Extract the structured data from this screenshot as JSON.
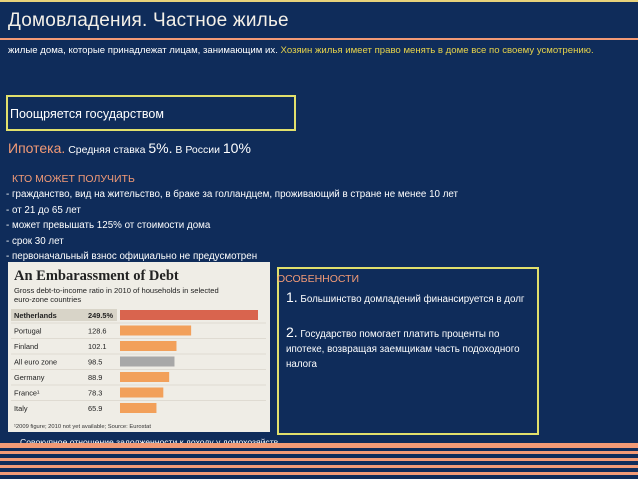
{
  "slide": {
    "title": "Домовладения. Частное жилье",
    "intro_text": "жилые дома, которые принадлежат лицам, занимающим их. ",
    "intro_highlight": "Хозяин жилья имеет право менять в доме все по своему усмотрению.",
    "promo_box": "Поощряется государством",
    "mortgage": {
      "label": "Ипотека.",
      "text1": " Средняя ставка ",
      "rate": "5%.",
      "text2": " В России ",
      "rate_ru": "10%"
    },
    "who_title": "КТО МОЖЕТ ПОЛУЧИТЬ",
    "who_items": [
      " - гражданство,  вид на жительство, в браке за голландцем, проживающий в стране не менее 10 лет",
      "- от 21 до 65 лет",
      "- может превышать 125% от стоимости дома",
      "- срок 30 лет",
      "- первоначальный взнос официально не предусмотрен"
    ],
    "features": {
      "title": "ОСОБЕННОСТИ",
      "items": [
        {
          "num": "1.",
          "text": " Большинство домладений финансируется в долг"
        },
        {
          "num": "2.",
          "text": " Государство помогает платить проценты по ипотеке, возвращая заемщикам часть подоходного налога"
        }
      ]
    },
    "chart_caption": "Совокупное отношение задолженности к доходу у домохозяйств"
  },
  "colors": {
    "background": "#0f2c5a",
    "accent_salmon": "#f29a76",
    "accent_yellow": "#e1e06c",
    "highlight_text": "#e7d34b",
    "bar_highlight": "#d9644e",
    "bar_default": "#f2a05a",
    "bar_eurozone": "#a8a8a8"
  },
  "chart_data": {
    "type": "bar",
    "title": "An Embarassment of Debt",
    "subtitle": "Gross debt-to-income ratio in 2010 of households in selected euro-zone countries",
    "categories": [
      "Netherlands",
      "Portugal",
      "Finland",
      "All euro zone",
      "Germany",
      "France¹",
      "Italy"
    ],
    "values": [
      249.5,
      128.6,
      102.1,
      98.5,
      88.9,
      78.3,
      65.9
    ],
    "value_labels": [
      "249.5%",
      "128.6",
      "102.1",
      "98.5",
      "88.9",
      "78.3",
      "65.9"
    ],
    "highlight": "Netherlands",
    "eurozone": "All euro zone",
    "grid": false,
    "footnote": "¹2009 figure; 2010 not yet available; Source: Eurostat"
  }
}
